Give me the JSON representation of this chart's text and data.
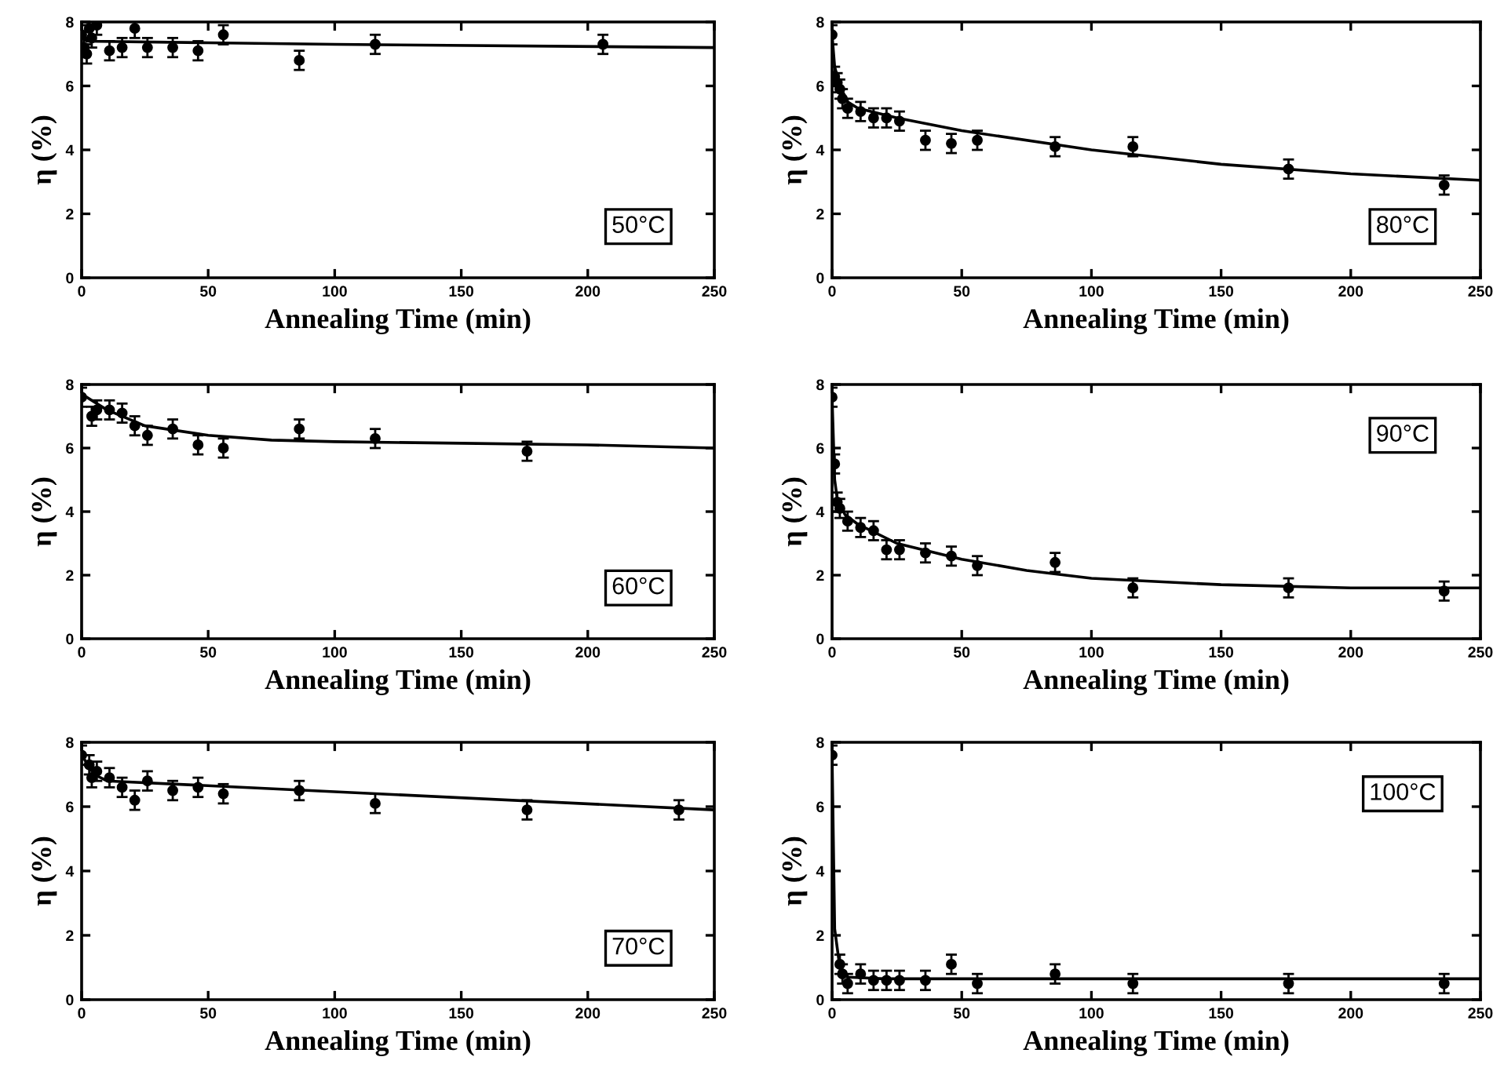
{
  "chart_data": [
    {
      "type": "scatter",
      "xlabel": "Annealing Time (min)",
      "ylabel": "η (%)",
      "xlim": [
        0,
        250
      ],
      "xticks": [
        0,
        50,
        100,
        150,
        200,
        250
      ],
      "ylim": [
        0,
        8
      ],
      "yticks": [
        0,
        2,
        4,
        6,
        8
      ],
      "grid": false,
      "annotations": [
        "50°C"
      ],
      "series": [
        {
          "color": "#000000",
          "marker": "circle",
          "x": [
            0,
            1,
            2,
            3,
            4,
            6,
            11,
            16,
            21,
            26,
            36,
            46,
            56,
            86,
            116,
            206
          ],
          "values": [
            7.6,
            7.2,
            7.0,
            7.8,
            7.5,
            7.9,
            7.1,
            7.2,
            7.8,
            7.2,
            7.2,
            7.1,
            7.6,
            6.8,
            7.3,
            7.3
          ],
          "errors": [
            0.3,
            0.3,
            0.3,
            0.3,
            0.3,
            0.3,
            0.3,
            0.3,
            0.3,
            0.3,
            0.3,
            0.3,
            0.3,
            0.3,
            0.3,
            0.3
          ]
        },
        {
          "type": "line",
          "color": "#000000",
          "x": [
            0,
            2,
            50,
            100,
            250
          ],
          "values": [
            7.6,
            7.4,
            7.35,
            7.3,
            7.2
          ]
        }
      ]
    },
    {
      "type": "scatter",
      "xlabel": "Annealing Time (min)",
      "ylabel": "η (%)",
      "xlim": [
        0,
        250
      ],
      "xticks": [
        0,
        50,
        100,
        150,
        200,
        250
      ],
      "ylim": [
        0,
        8
      ],
      "yticks": [
        0,
        2,
        4,
        6,
        8
      ],
      "grid": false,
      "annotations": [
        "80°C"
      ],
      "series": [
        {
          "color": "#000000",
          "marker": "circle",
          "x": [
            0,
            1,
            2,
            3,
            4,
            6,
            11,
            16,
            21,
            26,
            36,
            46,
            56,
            86,
            116,
            176,
            236
          ],
          "values": [
            7.6,
            6.3,
            6.1,
            5.9,
            5.6,
            5.3,
            5.2,
            5.0,
            5.0,
            4.9,
            4.3,
            4.2,
            4.3,
            4.1,
            4.1,
            3.4,
            2.9
          ],
          "errors": [
            0.3,
            0.3,
            0.3,
            0.3,
            0.3,
            0.3,
            0.3,
            0.3,
            0.3,
            0.3,
            0.3,
            0.3,
            0.3,
            0.3,
            0.3,
            0.3,
            0.3
          ]
        },
        {
          "type": "line",
          "color": "#000000",
          "x": [
            0,
            1,
            3,
            6,
            10,
            25,
            50,
            100,
            150,
            200,
            250
          ],
          "values": [
            7.6,
            6.6,
            6.0,
            5.5,
            5.3,
            5.0,
            4.6,
            4.0,
            3.55,
            3.25,
            3.05
          ]
        }
      ]
    },
    {
      "type": "scatter",
      "xlabel": "Annealing Time (min)",
      "ylabel": "η (%)",
      "xlim": [
        0,
        250
      ],
      "xticks": [
        0,
        50,
        100,
        150,
        200,
        250
      ],
      "ylim": [
        0,
        8
      ],
      "yticks": [
        0,
        2,
        4,
        6,
        8
      ],
      "grid": false,
      "annotations": [
        "60°C"
      ],
      "series": [
        {
          "color": "#000000",
          "marker": "circle",
          "x": [
            0,
            4,
            6,
            11,
            16,
            21,
            26,
            36,
            46,
            56,
            86,
            116,
            176
          ],
          "values": [
            7.6,
            7.0,
            7.2,
            7.2,
            7.1,
            6.7,
            6.4,
            6.6,
            6.1,
            6.0,
            6.6,
            6.3,
            5.9
          ],
          "errors": [
            0.3,
            0.3,
            0.3,
            0.3,
            0.3,
            0.3,
            0.3,
            0.3,
            0.3,
            0.3,
            0.3,
            0.3,
            0.3
          ]
        },
        {
          "type": "line",
          "color": "#000000",
          "x": [
            0,
            10,
            25,
            50,
            75,
            100,
            150,
            200,
            250
          ],
          "values": [
            7.7,
            7.2,
            6.7,
            6.4,
            6.25,
            6.2,
            6.15,
            6.1,
            6.0
          ]
        }
      ]
    },
    {
      "type": "scatter",
      "xlabel": "Annealing Time (min)",
      "ylabel": "η (%)",
      "xlim": [
        0,
        250
      ],
      "xticks": [
        0,
        50,
        100,
        150,
        200,
        250
      ],
      "ylim": [
        0,
        8
      ],
      "yticks": [
        0,
        2,
        4,
        6,
        8
      ],
      "grid": false,
      "annotations": [
        "90°C"
      ],
      "series": [
        {
          "color": "#000000",
          "marker": "circle",
          "x": [
            0,
            1,
            2,
            3,
            6,
            11,
            16,
            21,
            26,
            36,
            46,
            56,
            86,
            116,
            176,
            236
          ],
          "values": [
            7.6,
            5.5,
            4.3,
            4.1,
            3.7,
            3.5,
            3.4,
            2.8,
            2.8,
            2.7,
            2.6,
            2.3,
            2.4,
            1.6,
            1.6,
            1.5
          ],
          "errors": [
            0.3,
            0.3,
            0.3,
            0.3,
            0.3,
            0.3,
            0.3,
            0.3,
            0.3,
            0.3,
            0.3,
            0.3,
            0.3,
            0.3,
            0.3,
            0.3
          ]
        },
        {
          "type": "line",
          "color": "#000000",
          "x": [
            0,
            1,
            2,
            5,
            10,
            25,
            50,
            75,
            100,
            150,
            200,
            250
          ],
          "values": [
            7.6,
            5.0,
            4.4,
            3.9,
            3.6,
            3.0,
            2.5,
            2.15,
            1.9,
            1.7,
            1.6,
            1.6
          ]
        }
      ]
    },
    {
      "type": "scatter",
      "xlabel": "Annealing Time (min)",
      "ylabel": "η (%)",
      "xlim": [
        0,
        250
      ],
      "xticks": [
        0,
        50,
        100,
        150,
        200,
        250
      ],
      "ylim": [
        0,
        8
      ],
      "yticks": [
        0,
        2,
        4,
        6,
        8
      ],
      "grid": false,
      "annotations": [
        "70°C"
      ],
      "series": [
        {
          "color": "#000000",
          "marker": "circle",
          "x": [
            0,
            3,
            4,
            6,
            11,
            16,
            21,
            26,
            36,
            46,
            56,
            86,
            116,
            176,
            236
          ],
          "values": [
            7.6,
            7.3,
            6.9,
            7.1,
            6.9,
            6.6,
            6.2,
            6.8,
            6.5,
            6.6,
            6.4,
            6.5,
            6.1,
            5.9,
            5.9
          ],
          "errors": [
            0.3,
            0.3,
            0.3,
            0.3,
            0.3,
            0.3,
            0.3,
            0.3,
            0.3,
            0.3,
            0.3,
            0.3,
            0.3,
            0.3,
            0.3
          ]
        },
        {
          "type": "line",
          "color": "#000000",
          "x": [
            0,
            5,
            10,
            250
          ],
          "values": [
            7.6,
            7.0,
            6.8,
            5.9
          ]
        }
      ]
    },
    {
      "type": "scatter",
      "xlabel": "Annealing Time (min)",
      "ylabel": "η (%)",
      "xlim": [
        0,
        250
      ],
      "xticks": [
        0,
        50,
        100,
        150,
        200,
        250
      ],
      "ylim": [
        0,
        8
      ],
      "yticks": [
        0,
        2,
        4,
        6,
        8
      ],
      "grid": false,
      "annotations": [
        "100°C"
      ],
      "series": [
        {
          "color": "#000000",
          "marker": "circle",
          "x": [
            0,
            3,
            4,
            6,
            11,
            16,
            21,
            26,
            36,
            46,
            56,
            86,
            116,
            176,
            236
          ],
          "values": [
            7.6,
            1.1,
            0.8,
            0.5,
            0.8,
            0.6,
            0.6,
            0.6,
            0.6,
            1.1,
            0.5,
            0.8,
            0.5,
            0.5,
            0.5
          ],
          "errors": [
            0.3,
            0.3,
            0.3,
            0.3,
            0.3,
            0.3,
            0.3,
            0.3,
            0.3,
            0.3,
            0.3,
            0.3,
            0.3,
            0.3,
            0.3
          ]
        },
        {
          "type": "line",
          "color": "#000000",
          "x": [
            0,
            1,
            3,
            6,
            20,
            250
          ],
          "values": [
            7.6,
            2.2,
            1.0,
            0.7,
            0.65,
            0.65
          ]
        }
      ]
    }
  ]
}
